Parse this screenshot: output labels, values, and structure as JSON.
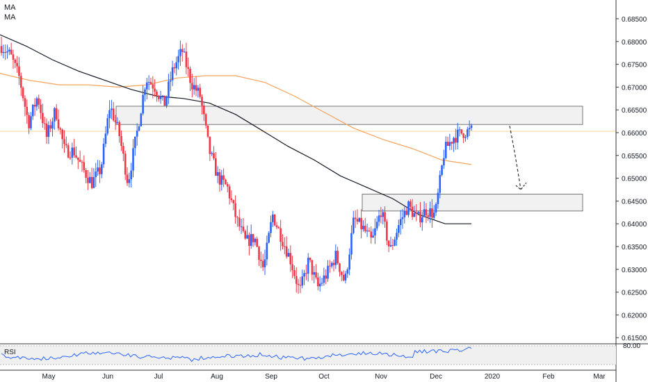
{
  "legend": {
    "ma1": "MA",
    "ma2": "MA"
  },
  "rsi_panel": {
    "label": "RSI",
    "upper_tick": "80.00"
  },
  "colors": {
    "up": "#2962ff",
    "down": "#f23645",
    "ma_fast": "#131722",
    "ma_slow": "#f7a35c",
    "rsi": "#2962ff",
    "zone_fill": "#efefef",
    "zone_border": "#555555",
    "level_line": "#f7d79a"
  },
  "chart_data": {
    "type": "candlestick",
    "title": "",
    "xlabel": "",
    "ylabel": "",
    "ylim": [
      0.6125,
      0.6885
    ],
    "y_ticks": [
      "0.68500",
      "0.68000",
      "0.67500",
      "0.67000",
      "0.66500",
      "0.66000",
      "0.65500",
      "0.65000",
      "0.64500",
      "0.64000",
      "0.63500",
      "0.63000",
      "0.62500",
      "0.62000",
      "0.61500"
    ],
    "x_ticks": [
      "May",
      "Jun",
      "Jul",
      "Aug",
      "Sep",
      "Oct",
      "Nov",
      "Dec",
      "2020",
      "Feb",
      "Mar"
    ],
    "grid": false,
    "close_trajectory": [
      0.679,
      0.677,
      0.672,
      0.662,
      0.668,
      0.659,
      0.665,
      0.656,
      0.656,
      0.652,
      0.649,
      0.652,
      0.666,
      0.66,
      0.649,
      0.66,
      0.672,
      0.67,
      0.666,
      0.674,
      0.678,
      0.671,
      0.668,
      0.656,
      0.65,
      0.648,
      0.641,
      0.636,
      0.637,
      0.63,
      0.642,
      0.637,
      0.632,
      0.625,
      0.632,
      0.626,
      0.629,
      0.633,
      0.627,
      0.641,
      0.639,
      0.636,
      0.643,
      0.634,
      0.64,
      0.644,
      0.641,
      0.643,
      0.642,
      0.656,
      0.659,
      0.66,
      0.6605
    ],
    "key_points": [
      {
        "date": "Jul high",
        "high": 0.679
      },
      {
        "date": "Oct low",
        "low": 0.6205
      },
      {
        "date": "Dec close",
        "close": 0.6605
      }
    ],
    "ma_fast": [
      0.6815,
      0.679,
      0.676,
      0.6735,
      0.6715,
      0.6695,
      0.668,
      0.6675,
      0.6665,
      0.664,
      0.6605,
      0.657,
      0.654,
      0.6505,
      0.648,
      0.6455,
      0.642,
      0.64,
      0.64
    ],
    "ma_slow": [
      0.673,
      0.6715,
      0.6705,
      0.6705,
      0.67,
      0.6705,
      0.672,
      0.6725,
      0.6725,
      0.671,
      0.668,
      0.6645,
      0.661,
      0.6585,
      0.6565,
      0.654,
      0.653
    ],
    "zones": [
      {
        "name": "resistance",
        "from": 0.6618,
        "to": 0.6658
      },
      {
        "name": "support",
        "from": 0.6428,
        "to": 0.6465
      }
    ],
    "horizontal_line": 0.6603,
    "projection_arrow": {
      "from": 0.6615,
      "to": 0.6475
    },
    "rsi": {
      "upper_level": 80.0
    }
  }
}
